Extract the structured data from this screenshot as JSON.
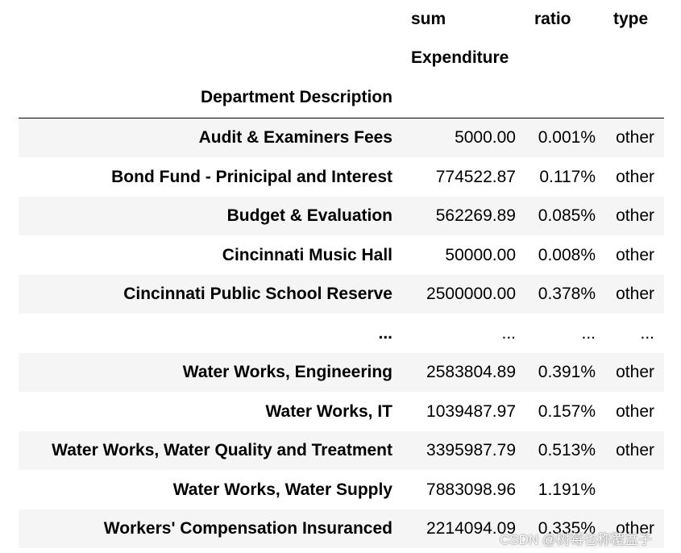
{
  "table": {
    "columns": [
      "sum Expenditure",
      "ratio",
      "type"
    ],
    "index_name": "Department Description",
    "rows": [
      [
        "Audit & Examiners Fees",
        "5000.00",
        "0.001%",
        "other"
      ],
      [
        "Bond Fund - Prinicipal and Interest",
        "774522.87",
        "0.117%",
        "other"
      ],
      [
        "Budget & Evaluation",
        "562269.89",
        "0.085%",
        "other"
      ],
      [
        "Cincinnati Music Hall",
        "50000.00",
        "0.008%",
        "other"
      ],
      [
        "Cincinnati Public School Reserve",
        "2500000.00",
        "0.378%",
        "other"
      ],
      [
        "...",
        "...",
        "...",
        "..."
      ],
      [
        "Water Works, Engineering",
        "2583804.89",
        "0.391%",
        "other"
      ],
      [
        "Water Works, IT",
        "1039487.97",
        "0.157%",
        "other"
      ],
      [
        "Water Works, Water Quality and Treatment",
        "3395987.79",
        "0.513%",
        "other"
      ],
      [
        "Water Works, Water Supply",
        "7883098.96",
        "1.191%",
        null
      ],
      [
        "Workers' Compensation Insuranced",
        "2214094.09",
        "0.335%",
        "other"
      ]
    ]
  },
  "watermark": "CSDN @树莓也称覆盆子"
}
